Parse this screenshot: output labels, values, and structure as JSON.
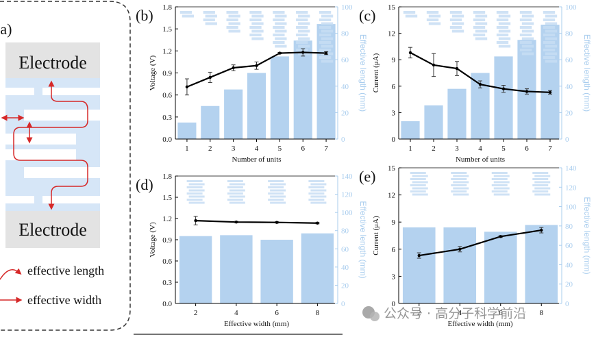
{
  "schematic": {
    "panel_label": "(a)",
    "electrode_top": "Electrode",
    "electrode_bottom": "Electrode",
    "legend": [
      {
        "label": "effective length",
        "marker": "curved-arrow-icon"
      },
      {
        "label": "effective width",
        "marker": "straight-arrow-icon"
      }
    ],
    "colors": {
      "body": "#d6e6f7",
      "electrode": "#e3e3e3",
      "arrow": "#d62828"
    }
  },
  "watermark": "公众号 · 高分子科学前沿",
  "colors": {
    "bar": "#b4d2ef",
    "line": "#000000",
    "right_axis": "#a9cdee"
  },
  "chart_data": [
    {
      "id": "b",
      "type": "bar",
      "panel_label": "(b)",
      "xlabel": "Number of units",
      "ylabel": "Voltage (V)",
      "y2label": "Effective length (mm)",
      "categories": [
        "1",
        "2",
        "3",
        "4",
        "5",
        "6",
        "7"
      ],
      "ylim": [
        0,
        1.8
      ],
      "yticks": [
        "0.0",
        "0.3",
        "0.6",
        "0.9",
        "1.2",
        "1.5",
        "1.8"
      ],
      "y2lim": [
        0,
        100
      ],
      "y2ticks": [
        "0",
        "20",
        "40",
        "60",
        "80",
        "100"
      ],
      "bars": [
        12.5,
        25,
        37.5,
        50,
        62.5,
        74.5,
        87
      ],
      "line": [
        0.71,
        0.84,
        0.97,
        1.0,
        1.17,
        1.18,
        1.17
      ],
      "errors": [
        0.11,
        0.07,
        0.04,
        0.05,
        0.01,
        0.05,
        0.02
      ]
    },
    {
      "id": "c",
      "type": "bar",
      "panel_label": "(c)",
      "xlabel": "Number of units",
      "ylabel": "Current (μA)",
      "y2label": "Effective length (mm)",
      "categories": [
        "1",
        "2",
        "3",
        "4",
        "5",
        "6",
        "7"
      ],
      "ylim": [
        0,
        15
      ],
      "yticks": [
        "0",
        "3",
        "6",
        "9",
        "12",
        "15"
      ],
      "y2lim": [
        0,
        100
      ],
      "y2ticks": [
        "0",
        "20",
        "40",
        "60",
        "80",
        "100"
      ],
      "bars": [
        13.5,
        25.5,
        38,
        50,
        62.5,
        75,
        86.5
      ],
      "line": [
        9.8,
        8.4,
        8.0,
        6.2,
        5.7,
        5.4,
        5.3
      ],
      "errors": [
        0.6,
        1.3,
        0.8,
        0.4,
        0.4,
        0.3,
        0.2
      ]
    },
    {
      "id": "d",
      "type": "bar",
      "panel_label": "(d)",
      "xlabel": "Effective width (mm)",
      "ylabel": "Voltage (V)",
      "y2label": "Effective length (mm)",
      "categories": [
        "2",
        "4",
        "6",
        "8"
      ],
      "ylim": [
        0,
        1.8
      ],
      "yticks": [
        "0.0",
        "0.3",
        "0.6",
        "0.9",
        "1.2",
        "1.5",
        "1.8"
      ],
      "y2lim": [
        0,
        140
      ],
      "y2ticks": [
        "0",
        "20",
        "40",
        "60",
        "80",
        "100",
        "120",
        "140"
      ],
      "bars": [
        74,
        75,
        70,
        77
      ],
      "line": [
        1.17,
        1.15,
        1.145,
        1.135
      ],
      "errors": [
        0.06,
        0.01,
        0.01,
        0.01
      ]
    },
    {
      "id": "e",
      "type": "bar",
      "panel_label": "(e)",
      "xlabel": "Effective width (mm)",
      "ylabel": "Current (μA)",
      "y2label": "Effective length (mm)",
      "categories": [
        "2",
        "4",
        "6",
        "8"
      ],
      "ylim": [
        0,
        15
      ],
      "yticks": [
        "0",
        "3",
        "6",
        "9",
        "12",
        "15"
      ],
      "y2lim": [
        0,
        140
      ],
      "y2ticks": [
        "0",
        "20",
        "40",
        "60",
        "80",
        "100",
        "120",
        "140"
      ],
      "bars": [
        78.5,
        78.5,
        74,
        81
      ],
      "line": [
        5.3,
        6.0,
        7.4,
        8.1
      ],
      "errors": [
        0.3,
        0.3,
        0.1,
        0.3
      ]
    }
  ]
}
